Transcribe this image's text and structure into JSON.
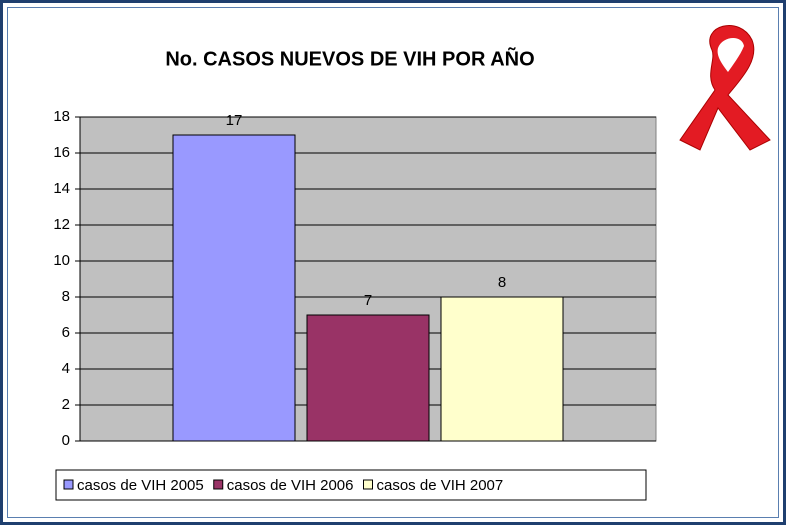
{
  "chart_data": {
    "type": "bar",
    "title": "No. CASOS NUEVOS DE VIH POR AÑO",
    "categories": [
      null
    ],
    "series": [
      {
        "name": "casos de VIH 2005",
        "color": "#9999ff",
        "values": [
          17
        ]
      },
      {
        "name": "casos de VIH 2006",
        "color": "#993366",
        "values": [
          7
        ]
      },
      {
        "name": "casos de VIH 2007",
        "color": "#ffffcc",
        "values": [
          8
        ]
      }
    ],
    "ylim": [
      0,
      18
    ],
    "yticks": [
      0,
      2,
      4,
      6,
      8,
      10,
      12,
      14,
      16,
      18
    ],
    "grid": true,
    "legend": "bottom"
  }
}
